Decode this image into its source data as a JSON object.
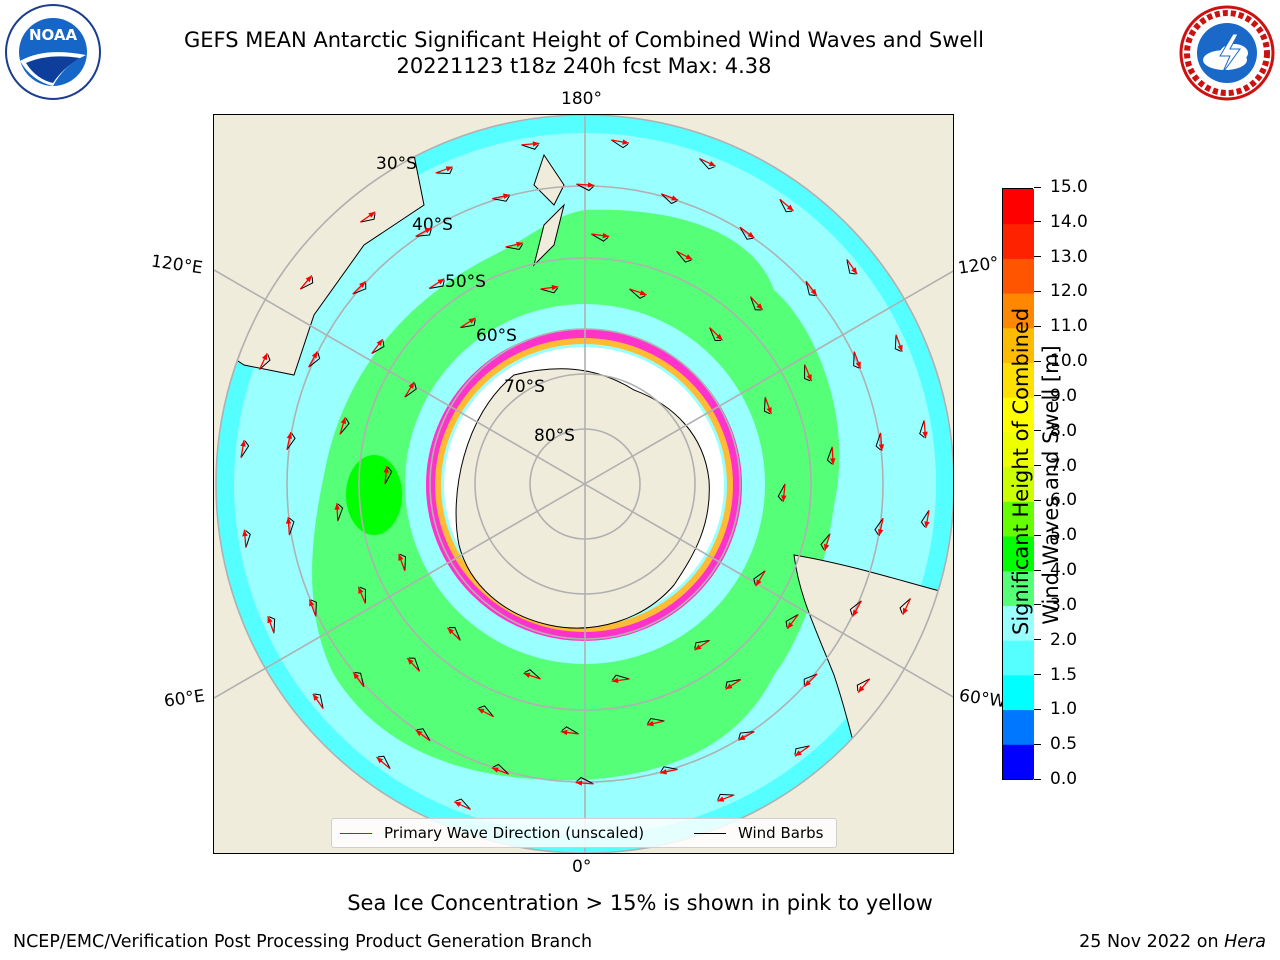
{
  "title": {
    "line1": "GEFS MEAN Antarctic Significant Height of Combined Wind Waves and Swell",
    "line2": "20221123 t18z 240h fcst   Max: 4.38"
  },
  "logos": {
    "left": "noaa-logo",
    "left_text": "NOAA",
    "left_ring_text": "NATIONAL OCEANIC AND ATMOSPHERIC ADMINISTRATION • U.S. DEPARTMENT OF COMMERCE",
    "right": "nws-logo",
    "right_ring_text": "NATIONAL WEATHER SERVICE"
  },
  "map": {
    "lon_labels": {
      "top": "180°",
      "bottom": "0°",
      "upper_left": "120°E",
      "upper_right": "120°",
      "lower_left": "60°E",
      "lower_right": "60°W"
    },
    "lat_labels": [
      "30°S",
      "40°S",
      "50°S",
      "60°S",
      "70°S",
      "80°S"
    ],
    "legend": {
      "wave_label": "Primary Wave Direction (unscaled)",
      "wave_color": "#ff0000",
      "wind_label": "Wind Barbs",
      "wind_color": "#000000"
    }
  },
  "colorbar": {
    "label_line1": "Significant Height of Combined",
    "label_line2": "Wind Waves and Swell [m]",
    "ticks": [
      "0.0",
      "0.5",
      "1.0",
      "1.5",
      "2.0",
      "3.0",
      "4.0",
      "5.0",
      "6.0",
      "7.0",
      "8.0",
      "9.0",
      "10.0",
      "11.0",
      "12.0",
      "13.0",
      "14.0",
      "15.0"
    ],
    "colors": [
      "#0000ff",
      "#0077ff",
      "#00ffff",
      "#55ffff",
      "#99ffff",
      "#55ff77",
      "#00ff00",
      "#66ff00",
      "#ccff00",
      "#eeff00",
      "#ffff00",
      "#ffe000",
      "#ffbb00",
      "#ff8800",
      "#ff5500",
      "#ff2200",
      "#ff0000"
    ]
  },
  "note": "Sea Ice Concentration > 15% is shown in pink to yellow",
  "footer": {
    "left": "NCEP/EMC/Verification Post Processing Product Generation Branch",
    "right_date": "25 Nov 2022 on",
    "right_machine": "Hera"
  }
}
